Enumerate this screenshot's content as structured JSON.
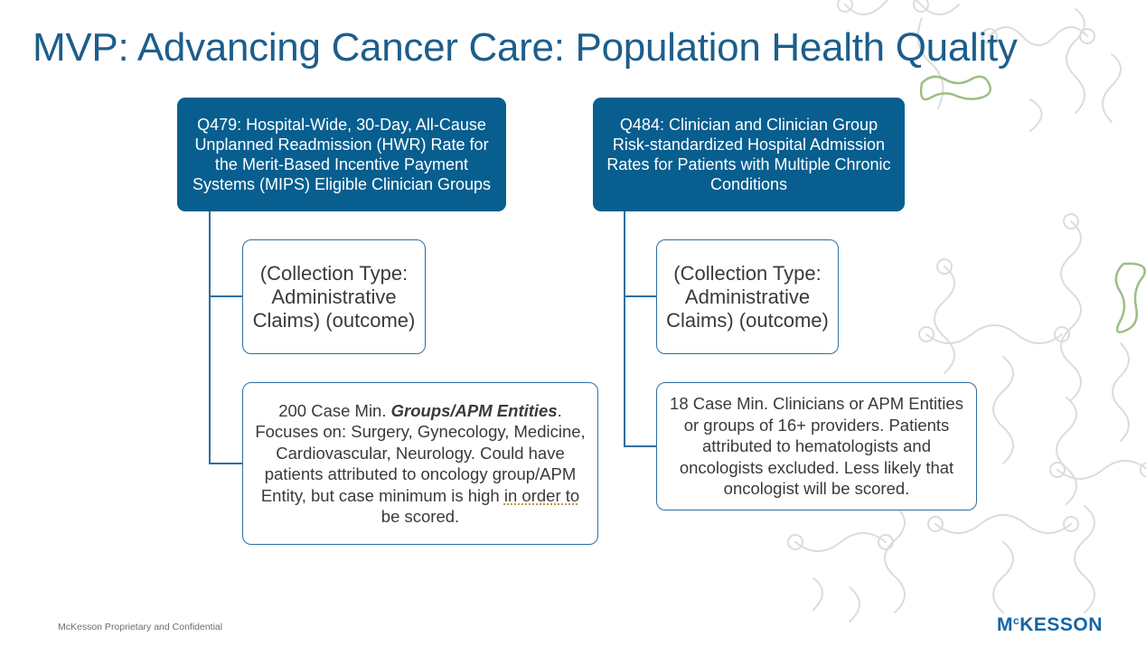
{
  "slide": {
    "title": "MVP: Advancing Cancer Care: Population Health Quality",
    "footer": "McKesson Proprietary and Confidential",
    "logo": {
      "m": "M",
      "c": "c",
      "rest": "KESSON"
    }
  },
  "measures": [
    {
      "header": "Q479: Hospital-Wide, 30-Day, All-Cause Unplanned Readmission (HWR) Rate for the Merit-Based Incentive Payment Systems (MIPS) Eligible Clinician Groups",
      "collection": "(Collection Type: Administrative Claims) (outcome)",
      "detail": {
        "p1": "200 Case Min. ",
        "emph": "Groups/APM Entities",
        "p2": ". Focuses on: Surgery, Gynecology, Medicine, Cardiovascular, Neurology. Could have patients attributed to oncology group/APM Entity, but case minimum is high ",
        "underlined": "in order to",
        "p3": " be scored."
      }
    },
    {
      "header": "Q484: Clinician and Clinician Group Risk-standardized Hospital Admission Rates for Patients with Multiple Chronic Conditions",
      "collection": "(Collection Type: Administrative Claims) (outcome)",
      "detail": {
        "text": "18 Case Min.  Clinicians or APM Entities or groups of 16+ providers. Patients attributed to hematologists and oncologists excluded. Less likely that oncologist will be scored."
      }
    }
  ],
  "colors": {
    "title": "#1c5e8c",
    "header_fill": "#075e8f",
    "connector": "#2f6ea0",
    "logo": "#1665a4",
    "decoration_gray": "#dcdcdc",
    "decoration_green": "#9cbf84"
  }
}
